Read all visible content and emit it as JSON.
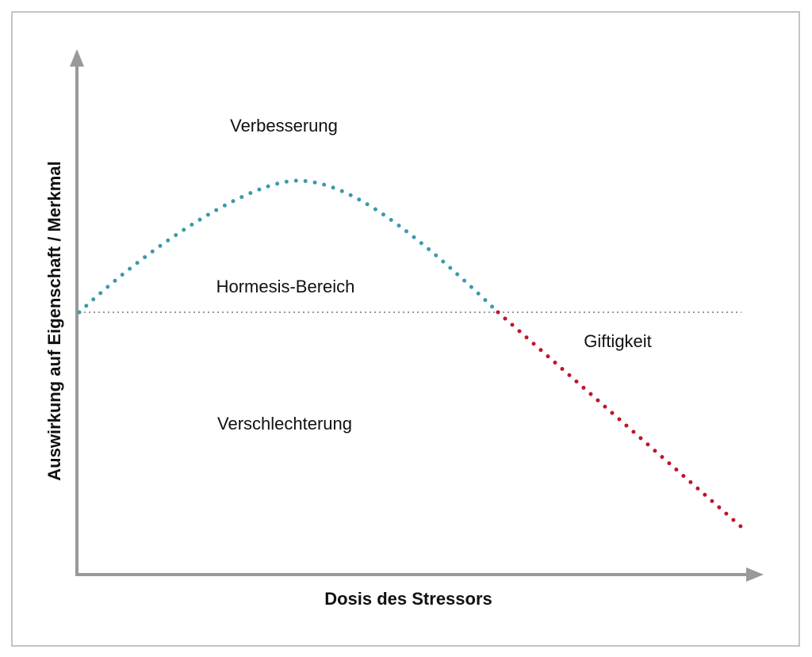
{
  "diagram": {
    "y_axis_label": "Auswirkung auf Eigenschaft / Merkmal",
    "x_axis_label": "Dosis des Stressors",
    "regions": {
      "improvement": "Verbesserung",
      "hormesis": "Hormesis-Bereich",
      "deterioration": "Verschlechterung",
      "toxicity": "Giftigkeit"
    }
  }
}
